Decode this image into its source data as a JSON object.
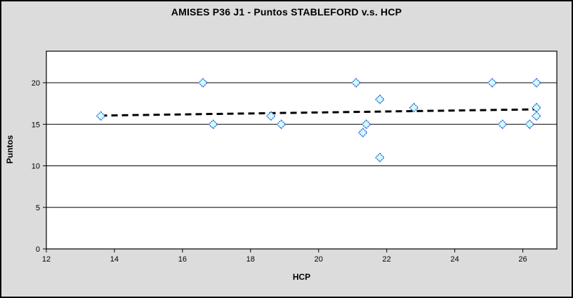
{
  "chart_data": {
    "type": "scatter",
    "title": "AMISES P36 J1 - Puntos STABLEFORD v.s. HCP",
    "xlabel": "HCP",
    "ylabel": "Puntos",
    "xlim": [
      12,
      27
    ],
    "ylim": [
      0,
      23.8
    ],
    "x_ticks": [
      12,
      14,
      16,
      18,
      20,
      22,
      24,
      26
    ],
    "y_ticks": [
      0,
      5,
      10,
      15,
      20
    ],
    "grid": "horizontal-only",
    "legend": "none",
    "points": [
      [
        13.6,
        16
      ],
      [
        16.6,
        20
      ],
      [
        16.9,
        15
      ],
      [
        18.6,
        16
      ],
      [
        18.9,
        15
      ],
      [
        21.1,
        20
      ],
      [
        21.3,
        14
      ],
      [
        21.4,
        15
      ],
      [
        21.8,
        18
      ],
      [
        21.8,
        11
      ],
      [
        22.8,
        17
      ],
      [
        25.1,
        20
      ],
      [
        25.4,
        15
      ],
      [
        26.2,
        15
      ],
      [
        26.4,
        20
      ],
      [
        26.4,
        17
      ],
      [
        26.4,
        16
      ]
    ],
    "trendline": {
      "style": "dashed",
      "x1": 13.6,
      "y1": 16.05,
      "x2": 26.4,
      "y2": 16.8
    },
    "marker": {
      "shape": "diamond",
      "fill": "#CCFFFF",
      "stroke": "#3355CC",
      "size": 12
    },
    "colors": {
      "outer_bg": "#DCDCDC",
      "plot_bg": "#FFFFFF",
      "grid": "#000000",
      "axis": "#000000",
      "trend": "#000000",
      "title_text": "#000000"
    }
  }
}
